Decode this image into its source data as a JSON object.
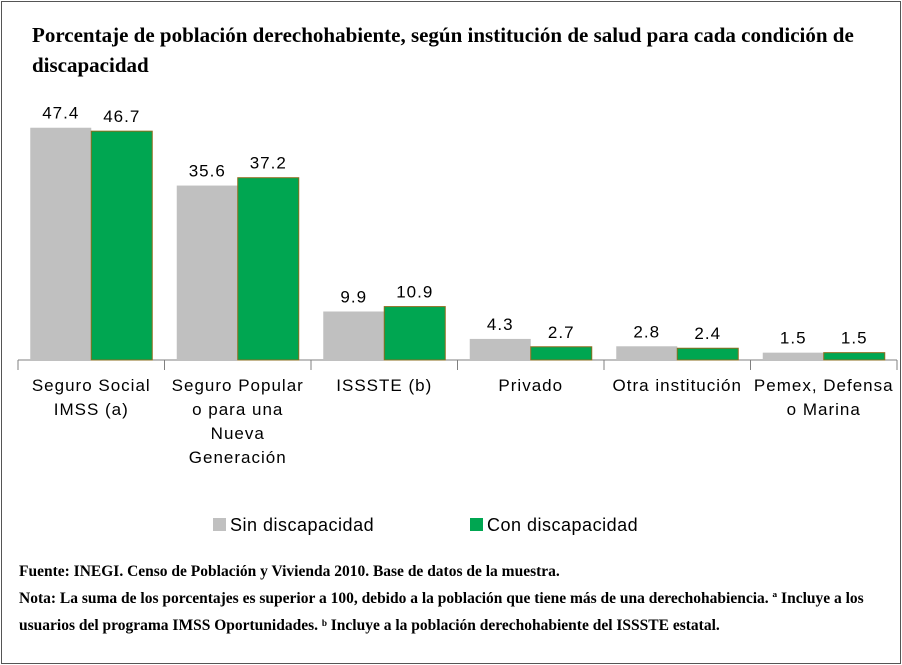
{
  "chart_data": {
    "type": "bar",
    "title": "Porcentaje de población derechohabiente, según institución de salud para cada condición de discapacidad",
    "categories": [
      "Seguro Social IMSS (a)",
      "Seguro Popular o para una Nueva Generación",
      "ISSSTE (b)",
      "Privado",
      "Otra institución",
      "Pemex, Defensa o Marina"
    ],
    "series": [
      {
        "name": "Sin discapacidad",
        "color": "#c0c0c0",
        "values": [
          47.4,
          35.6,
          9.9,
          4.3,
          2.8,
          1.5
        ]
      },
      {
        "name": "Con discapacidad",
        "color": "#00a651",
        "values": [
          46.7,
          37.2,
          10.9,
          2.7,
          2.4,
          1.5
        ]
      }
    ],
    "source": "Fuente: INEGI. Censo de Población y Vivienda 2010. Base de datos de la muestra.",
    "note": "Nota: La suma de los porcentajes es superior a 100, debido a la población que tiene más de una derechohabiencia. ª Incluye a los usuarios del programa IMSS Oportunidades. ᵇ Incluye a la población derechohabiente del ISSSTE estatal."
  }
}
